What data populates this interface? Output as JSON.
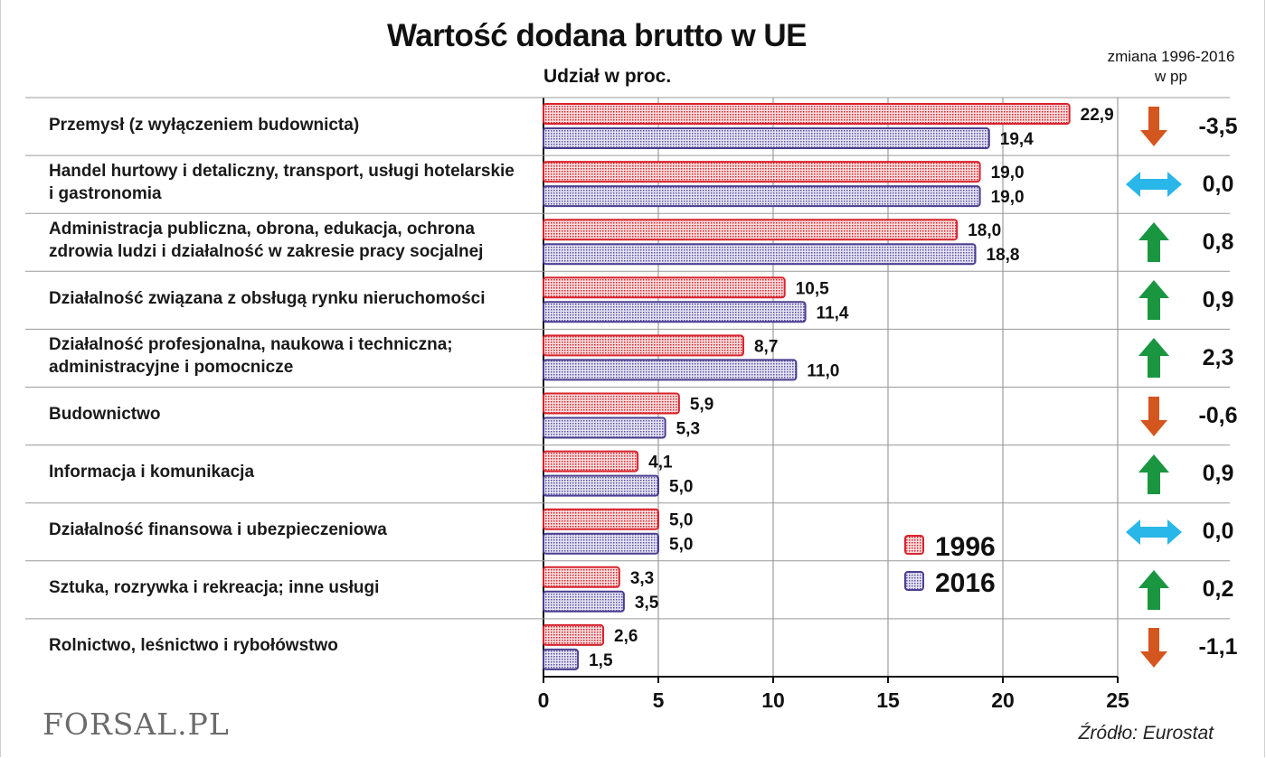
{
  "header": {
    "title": "Wartość dodana brutto w UE",
    "ylabel": "Udział w proc.",
    "change_label_line1": "zmiana 1996-2016",
    "change_label_line2": "w pp"
  },
  "footer": {
    "source": "Źródło:  Eurostat",
    "logo": "FORSAL.PL"
  },
  "colors": {
    "series_1996": "#d9232d",
    "series_2016": "#4a3f8f",
    "arrow_up": "#1a9641",
    "arrow_down": "#d4561f",
    "arrow_flat": "#29b6e8"
  },
  "chart_data": {
    "type": "bar",
    "orientation": "horizontal",
    "categories": [
      "Przemysł (z wyłączeniem budownicta)",
      "Handel hurtowy i detaliczny, transport, usługi hotelarskie\ni gastronomia",
      "Administracja publiczna, obrona, edukacja, ochrona\nzdrowia ludzi i działalność w zakresie pracy socjalnej",
      "Działalność związana z obsługą rynku nieruchomości",
      "Działalność profesjonalna, naukowa i techniczna;\nadministracyjne i pomocnicze",
      "Budownictwo",
      "Informacja i komunikacja",
      "Działalność finansowa i ubezpieczeniowa",
      "Sztuka, rozrywka i rekreacja; inne usługi",
      "Rolnictwo, leśnictwo i rybołówstwo"
    ],
    "series": [
      {
        "name": "1996",
        "values": [
          22.9,
          19.0,
          18.0,
          10.5,
          8.7,
          5.9,
          4.1,
          5.0,
          3.3,
          2.6
        ],
        "labels": [
          "22,9",
          "19,0",
          "18,0",
          "10,5",
          "8,7",
          "5,9",
          "4,1",
          "5,0",
          "3,3",
          "2,6"
        ]
      },
      {
        "name": "2016",
        "values": [
          19.4,
          19.0,
          18.8,
          11.4,
          11.0,
          5.3,
          5.0,
          5.0,
          3.5,
          1.5
        ],
        "labels": [
          "19,4",
          "19,0",
          "18,8",
          "11,4",
          "11,0",
          "5,3",
          "5,0",
          "5,0",
          "3,5",
          "1,5"
        ]
      }
    ],
    "change_pp": [
      {
        "value": "-3,5",
        "direction": "down"
      },
      {
        "value": "0,0",
        "direction": "flat"
      },
      {
        "value": "0,8",
        "direction": "up"
      },
      {
        "value": "0,9",
        "direction": "up"
      },
      {
        "value": "2,3",
        "direction": "up"
      },
      {
        "value": "-0,6",
        "direction": "down"
      },
      {
        "value": "0,9",
        "direction": "up"
      },
      {
        "value": "0,0",
        "direction": "flat"
      },
      {
        "value": "0,2",
        "direction": "up"
      },
      {
        "value": "-1,1",
        "direction": "down"
      }
    ],
    "xlim": [
      0,
      25
    ],
    "xticks": [
      "0",
      "5",
      "10",
      "15",
      "20",
      "25"
    ],
    "grid": true,
    "legend_position": "lower-right inside plot"
  }
}
